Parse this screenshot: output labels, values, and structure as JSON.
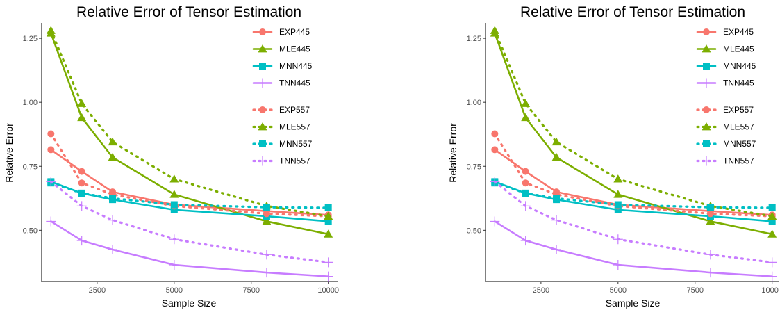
{
  "chart_data": [
    {
      "type": "line",
      "title": "Relative Error of Tensor Estimation",
      "xlabel": "Sample Size",
      "ylabel": "Relative Error",
      "xlim": [
        700,
        10300
      ],
      "ylim": [
        0.3,
        1.31
      ],
      "xticks": [
        2500,
        5000,
        7500,
        10000
      ],
      "xtick_labels": [
        "2500",
        "5000",
        "7500",
        "10000"
      ],
      "yticks": [
        0.5,
        0.75,
        1.0,
        1.25
      ],
      "ytick_labels": [
        "0.50",
        "0.75",
        "1.00",
        "1.25"
      ],
      "grid": false,
      "legend_position": "top-right",
      "x": [
        1000,
        2000,
        3000,
        5000,
        8000,
        10000
      ],
      "series": [
        {
          "name": "EXP445",
          "color": "#F8766D",
          "marker": "circle",
          "dash": "solid",
          "values": [
            0.815,
            0.73,
            0.65,
            0.6,
            0.575,
            0.56
          ]
        },
        {
          "name": "MLE445",
          "color": "#7CAE00",
          "marker": "triangle",
          "dash": "solid",
          "values": [
            1.27,
            0.94,
            0.785,
            0.64,
            0.535,
            0.485
          ]
        },
        {
          "name": "MNN445",
          "color": "#00BFC4",
          "marker": "square",
          "dash": "solid",
          "values": [
            0.69,
            0.645,
            0.62,
            0.58,
            0.555,
            0.535
          ]
        },
        {
          "name": "TNN445",
          "color": "#C77CFF",
          "marker": "plus",
          "dash": "solid",
          "values": [
            0.535,
            0.46,
            0.425,
            0.365,
            0.335,
            0.32
          ]
        },
        {
          "name": "EXP557",
          "color": "#F8766D",
          "marker": "circle",
          "dash": "dotted",
          "values": [
            0.877,
            0.685,
            0.64,
            0.595,
            0.565,
            0.555
          ]
        },
        {
          "name": "MLE557",
          "color": "#7CAE00",
          "marker": "triangle",
          "dash": "dotted",
          "values": [
            1.28,
            0.995,
            0.845,
            0.7,
            0.595,
            0.555
          ]
        },
        {
          "name": "MNN557",
          "color": "#00BFC4",
          "marker": "square",
          "dash": "dotted",
          "values": [
            0.685,
            0.645,
            0.625,
            0.6,
            0.59,
            0.588
          ]
        },
        {
          "name": "TNN557",
          "color": "#C77CFF",
          "marker": "plus",
          "dash": "dotted",
          "values": [
            0.69,
            0.595,
            0.54,
            0.465,
            0.405,
            0.375
          ]
        }
      ]
    },
    {
      "type": "line",
      "title": "Relative Error of Tensor Estimation",
      "xlabel": "Sample Size",
      "ylabel": "Relative Error",
      "xlim": [
        700,
        10300
      ],
      "ylim": [
        0.3,
        1.31
      ],
      "xticks": [
        2500,
        5000,
        7500,
        10000
      ],
      "xtick_labels": [
        "2500",
        "5000",
        "7500",
        "10000"
      ],
      "yticks": [
        0.5,
        0.75,
        1.0,
        1.25
      ],
      "ytick_labels": [
        "0.50",
        "0.75",
        "1.00",
        "1.25"
      ],
      "grid": false,
      "legend_position": "top-right",
      "x": [
        1000,
        2000,
        3000,
        5000,
        8000,
        10000
      ],
      "series": [
        {
          "name": "EXP445",
          "color": "#F8766D",
          "marker": "circle",
          "dash": "solid",
          "values": [
            0.815,
            0.73,
            0.65,
            0.6,
            0.575,
            0.56
          ]
        },
        {
          "name": "MLE445",
          "color": "#7CAE00",
          "marker": "triangle",
          "dash": "solid",
          "values": [
            1.27,
            0.94,
            0.785,
            0.64,
            0.535,
            0.485
          ]
        },
        {
          "name": "MNN445",
          "color": "#00BFC4",
          "marker": "square",
          "dash": "solid",
          "values": [
            0.69,
            0.645,
            0.62,
            0.58,
            0.555,
            0.535
          ]
        },
        {
          "name": "TNN445",
          "color": "#C77CFF",
          "marker": "plus",
          "dash": "solid",
          "values": [
            0.535,
            0.46,
            0.425,
            0.365,
            0.335,
            0.32
          ]
        },
        {
          "name": "EXP557",
          "color": "#F8766D",
          "marker": "circle",
          "dash": "dotted",
          "values": [
            0.877,
            0.685,
            0.64,
            0.595,
            0.565,
            0.555
          ]
        },
        {
          "name": "MLE557",
          "color": "#7CAE00",
          "marker": "triangle",
          "dash": "dotted",
          "values": [
            1.28,
            0.995,
            0.845,
            0.7,
            0.595,
            0.555
          ]
        },
        {
          "name": "MNN557",
          "color": "#00BFC4",
          "marker": "square",
          "dash": "dotted",
          "values": [
            0.685,
            0.645,
            0.625,
            0.6,
            0.59,
            0.588
          ]
        },
        {
          "name": "TNN557",
          "color": "#C77CFF",
          "marker": "plus",
          "dash": "dotted",
          "values": [
            0.69,
            0.595,
            0.54,
            0.465,
            0.405,
            0.375
          ]
        }
      ]
    }
  ]
}
